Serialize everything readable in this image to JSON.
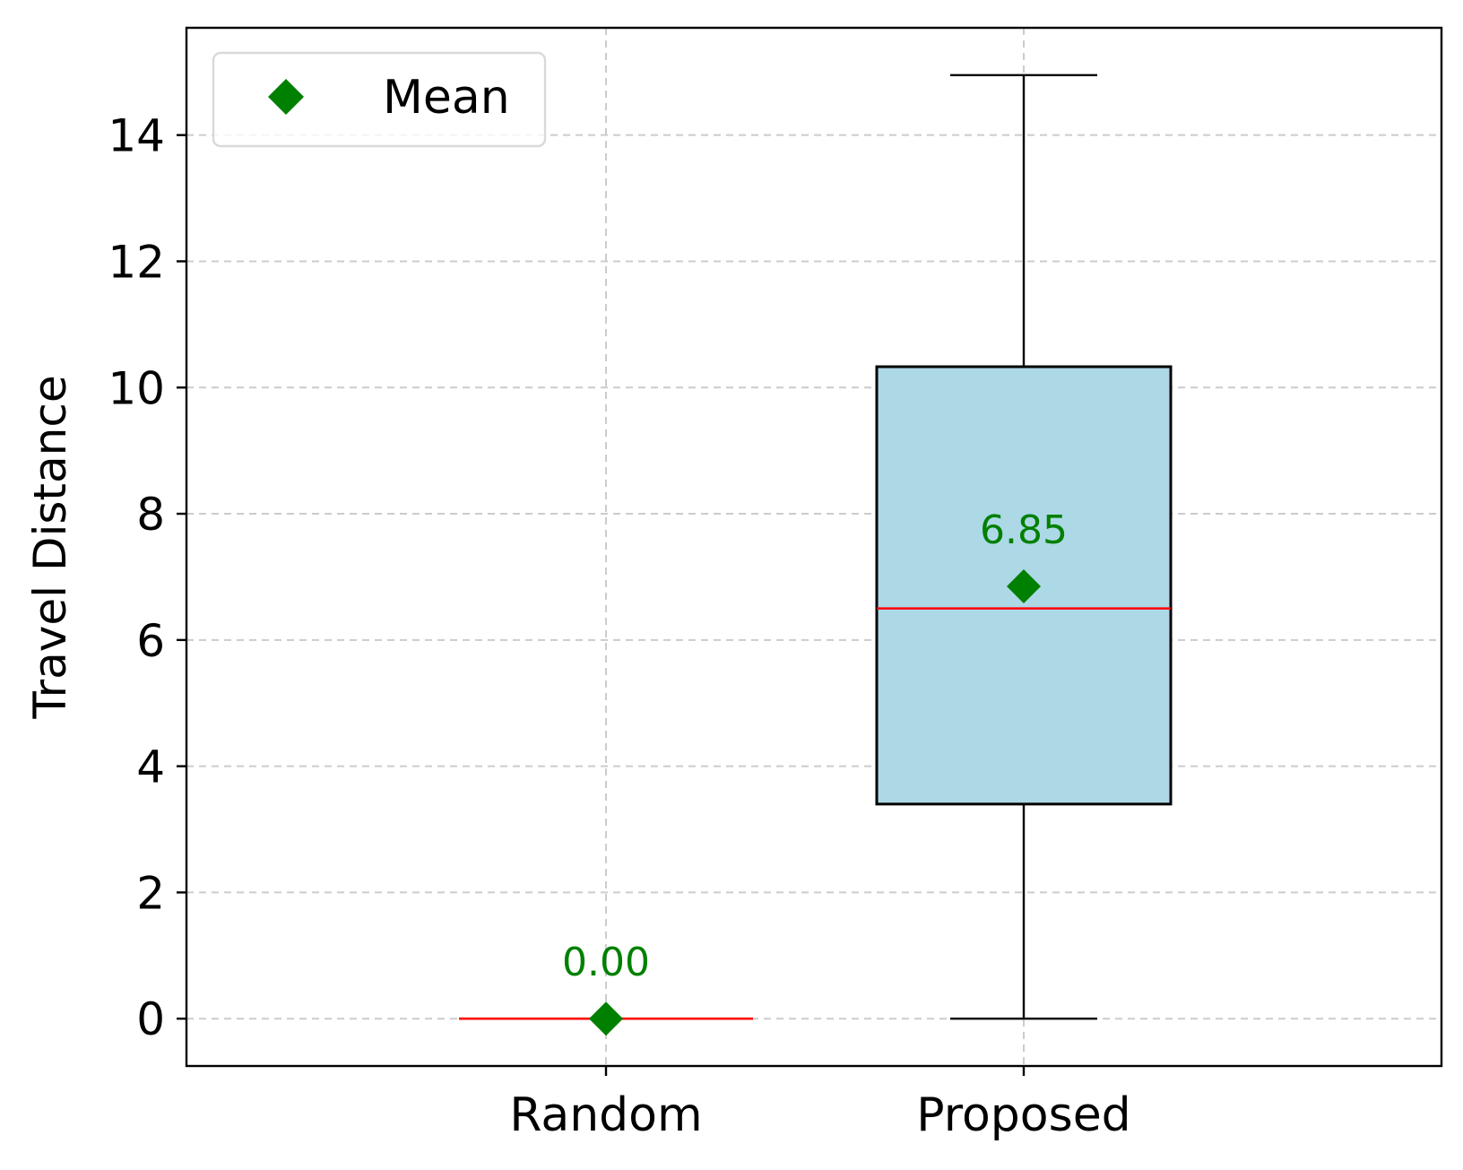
{
  "chart_data": {
    "type": "box",
    "ylabel": "Travel Distance",
    "xlabel": "",
    "categories": [
      "Random",
      "Proposed"
    ],
    "ylim": [
      -0.75,
      15.7
    ],
    "yticks": [
      0,
      2,
      4,
      6,
      8,
      10,
      12,
      14
    ],
    "grid": true,
    "legend": {
      "position": "top-left",
      "entries": [
        {
          "label": "Mean",
          "marker": "diamond",
          "color": "#008000"
        }
      ]
    },
    "boxes": [
      {
        "category": "Random",
        "whisker_low": 0,
        "q1": 0,
        "median": 0,
        "q3": 0,
        "whisker_high": 0,
        "mean": 0.0,
        "mean_label": "0.00"
      },
      {
        "category": "Proposed",
        "whisker_low": 0,
        "q1": 3.4,
        "median": 6.5,
        "q3": 10.33,
        "whisker_high": 14.95,
        "mean": 6.85,
        "mean_label": "6.85"
      }
    ],
    "colors": {
      "box_fill": "#add8e6",
      "median": "#ff0000",
      "mean": "#008000",
      "whisker": "#000000",
      "grid": "#cccccc"
    }
  }
}
